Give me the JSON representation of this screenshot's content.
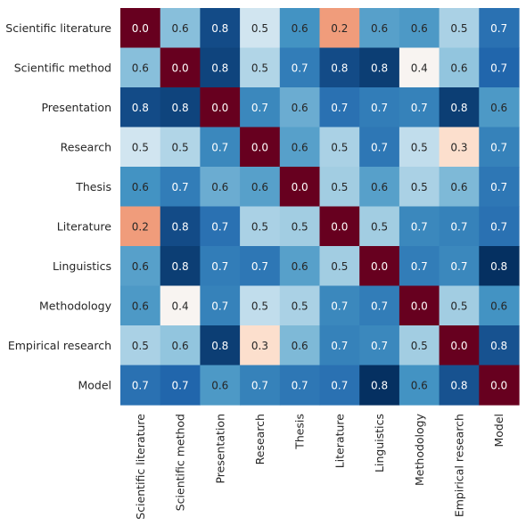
{
  "chart_data": {
    "type": "heatmap",
    "title": "",
    "xlabel": "",
    "ylabel": "",
    "colormap": "RdBu",
    "color_range": [
      0.0,
      0.8
    ],
    "labels": [
      "Scientific literature",
      "Scientific method",
      "Presentation",
      "Research",
      "Thesis",
      "Literature",
      "Linguistics",
      "Methodology",
      "Empirical research",
      "Model"
    ],
    "matrix": [
      [
        0.0,
        0.57,
        0.76,
        0.48,
        0.64,
        0.23,
        0.62,
        0.63,
        0.53,
        0.7
      ],
      [
        0.57,
        0.0,
        0.77,
        0.52,
        0.68,
        0.76,
        0.78,
        0.39,
        0.56,
        0.72
      ],
      [
        0.76,
        0.77,
        0.0,
        0.66,
        0.6,
        0.7,
        0.68,
        0.67,
        0.78,
        0.63
      ],
      [
        0.48,
        0.52,
        0.66,
        0.0,
        0.62,
        0.53,
        0.69,
        0.5,
        0.33,
        0.67
      ],
      [
        0.64,
        0.68,
        0.6,
        0.62,
        0.0,
        0.54,
        0.62,
        0.53,
        0.58,
        0.69
      ],
      [
        0.23,
        0.76,
        0.7,
        0.53,
        0.54,
        0.0,
        0.54,
        0.66,
        0.67,
        0.7
      ],
      [
        0.62,
        0.78,
        0.68,
        0.69,
        0.62,
        0.54,
        0.0,
        0.68,
        0.66,
        0.84
      ],
      [
        0.63,
        0.39,
        0.67,
        0.5,
        0.53,
        0.66,
        0.68,
        0.0,
        0.54,
        0.64
      ],
      [
        0.53,
        0.56,
        0.78,
        0.33,
        0.58,
        0.67,
        0.66,
        0.54,
        0.0,
        0.75
      ],
      [
        0.7,
        0.72,
        0.63,
        0.67,
        0.69,
        0.7,
        0.84,
        0.64,
        0.75,
        0.0
      ]
    ],
    "cell_text": [
      [
        "0.0",
        "0.6",
        "0.8",
        "0.5",
        "0.6",
        "0.2",
        "0.6",
        "0.6",
        "0.5",
        "0.7"
      ],
      [
        "0.6",
        "0.0",
        "0.8",
        "0.5",
        "0.7",
        "0.8",
        "0.8",
        "0.4",
        "0.6",
        "0.7"
      ],
      [
        "0.8",
        "0.8",
        "0.0",
        "0.7",
        "0.6",
        "0.7",
        "0.7",
        "0.7",
        "0.8",
        "0.6"
      ],
      [
        "0.5",
        "0.5",
        "0.7",
        "0.0",
        "0.6",
        "0.5",
        "0.7",
        "0.5",
        "0.3",
        "0.7"
      ],
      [
        "0.6",
        "0.7",
        "0.6",
        "0.6",
        "0.0",
        "0.5",
        "0.6",
        "0.5",
        "0.6",
        "0.7"
      ],
      [
        "0.2",
        "0.8",
        "0.7",
        "0.5",
        "0.5",
        "0.0",
        "0.5",
        "0.7",
        "0.7",
        "0.7"
      ],
      [
        "0.6",
        "0.8",
        "0.7",
        "0.7",
        "0.6",
        "0.5",
        "0.0",
        "0.7",
        "0.7",
        "0.8"
      ],
      [
        "0.6",
        "0.4",
        "0.7",
        "0.5",
        "0.5",
        "0.7",
        "0.7",
        "0.0",
        "0.5",
        "0.6"
      ],
      [
        "0.5",
        "0.6",
        "0.8",
        "0.3",
        "0.6",
        "0.7",
        "0.7",
        "0.5",
        "0.0",
        "0.8"
      ],
      [
        "0.7",
        "0.7",
        "0.6",
        "0.7",
        "0.7",
        "0.7",
        "0.8",
        "0.6",
        "0.8",
        "0.0"
      ]
    ]
  }
}
